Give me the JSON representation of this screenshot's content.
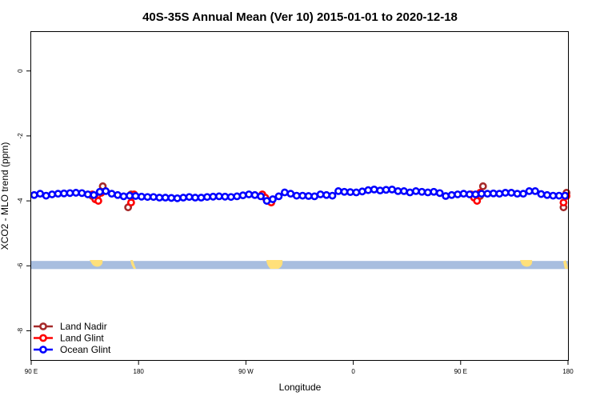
{
  "chart_data": {
    "type": "line",
    "title": "40S-35S Annual Mean (Ver 10)   2015-01-01 to 2020-12-18",
    "xlabel": "Longitude",
    "ylabel": "XCO2 - MLO trend (ppm)",
    "xlim": [
      90,
      450
    ],
    "ylim": [
      -8.9,
      1.2
    ],
    "x_ticks": [
      {
        "value": 90,
        "label": "90 E"
      },
      {
        "value": 162,
        "label": "180"
      },
      {
        "value": 234,
        "label": "90 W"
      },
      {
        "value": 306,
        "label": "0"
      },
      {
        "value": 378,
        "label": "90 E"
      },
      {
        "value": 450,
        "label": "180"
      }
    ],
    "y_ticks": [
      {
        "value": 0,
        "label": "0"
      },
      {
        "value": -2,
        "label": "-2"
      },
      {
        "value": -4,
        "label": "-4"
      },
      {
        "value": -6,
        "label": "-6"
      },
      {
        "value": -8,
        "label": "-8"
      }
    ],
    "map_strip": {
      "y_top": -5.85,
      "y_bottom": -6.1,
      "ocean_color": "#a8bedf",
      "land_color": "#ffe07a"
    },
    "legend": {
      "position": "bottom-left"
    },
    "series": [
      {
        "name": "Land Nadir",
        "color": "#a52a2a",
        "x": [
          131,
          133,
          138,
          155,
          157,
          391,
          393,
          447,
          449
        ],
        "y": [
          -3.85,
          -3.95,
          -3.55,
          -4.2,
          -3.8,
          -3.85,
          -3.55,
          -4.2,
          -3.75
        ]
      },
      {
        "name": "Land Glint",
        "color": "#ff0000",
        "x": [
          131,
          133,
          135,
          137,
          157,
          159,
          245,
          247,
          249,
          251,
          385,
          387,
          389,
          391,
          447,
          449
        ],
        "y": [
          -3.8,
          -3.95,
          -4.0,
          -3.75,
          -4.05,
          -3.8,
          -3.8,
          -3.9,
          -4.0,
          -4.05,
          -3.8,
          -3.9,
          -4.0,
          -3.75,
          -4.05,
          -3.85
        ]
      },
      {
        "name": "Ocean Glint",
        "color": "#0000ff",
        "x": [
          92,
          96,
          100,
          104,
          108,
          112,
          116,
          120,
          124,
          128,
          132,
          136,
          140,
          144,
          148,
          152,
          156,
          160,
          164,
          168,
          172,
          176,
          180,
          184,
          188,
          192,
          196,
          200,
          204,
          208,
          212,
          216,
          220,
          224,
          228,
          232,
          236,
          240,
          244,
          248,
          252,
          256,
          260,
          264,
          268,
          272,
          276,
          280,
          284,
          288,
          292,
          296,
          300,
          304,
          308,
          312,
          316,
          320,
          324,
          328,
          332,
          336,
          340,
          344,
          348,
          352,
          356,
          360,
          364,
          368,
          372,
          376,
          380,
          384,
          388,
          392,
          396,
          400,
          404,
          408,
          412,
          416,
          420,
          424,
          428,
          432,
          436,
          440,
          444,
          448
        ],
        "y": [
          -3.82,
          -3.78,
          -3.84,
          -3.8,
          -3.78,
          -3.77,
          -3.76,
          -3.75,
          -3.76,
          -3.8,
          -3.82,
          -3.72,
          -3.7,
          -3.78,
          -3.82,
          -3.86,
          -3.84,
          -3.85,
          -3.87,
          -3.88,
          -3.88,
          -3.9,
          -3.9,
          -3.91,
          -3.92,
          -3.9,
          -3.88,
          -3.9,
          -3.9,
          -3.88,
          -3.87,
          -3.86,
          -3.87,
          -3.88,
          -3.86,
          -3.83,
          -3.8,
          -3.82,
          -3.86,
          -4.0,
          -3.95,
          -3.86,
          -3.74,
          -3.78,
          -3.84,
          -3.84,
          -3.85,
          -3.86,
          -3.8,
          -3.82,
          -3.84,
          -3.7,
          -3.72,
          -3.73,
          -3.74,
          -3.71,
          -3.67,
          -3.65,
          -3.68,
          -3.66,
          -3.65,
          -3.7,
          -3.7,
          -3.74,
          -3.7,
          -3.72,
          -3.74,
          -3.72,
          -3.76,
          -3.85,
          -3.82,
          -3.8,
          -3.78,
          -3.8,
          -3.8,
          -3.78,
          -3.78,
          -3.77,
          -3.78,
          -3.75,
          -3.75,
          -3.78,
          -3.78,
          -3.7,
          -3.7,
          -3.79,
          -3.82,
          -3.84,
          -3.84,
          -3.84
        ]
      }
    ]
  }
}
